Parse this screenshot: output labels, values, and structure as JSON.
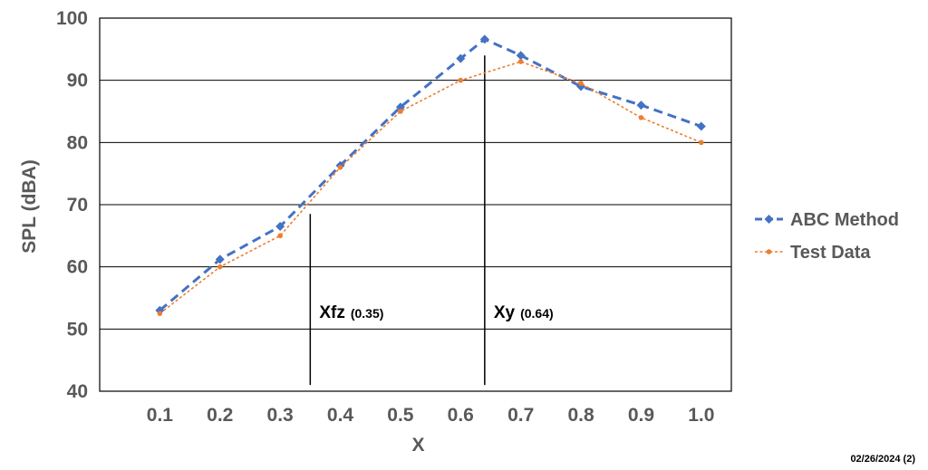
{
  "chart_data": {
    "type": "line",
    "xlabel": "X",
    "ylabel": "SPL (dBA)",
    "x": [
      0.1,
      0.2,
      0.3,
      0.4,
      0.5,
      0.6,
      0.7,
      0.8,
      0.9,
      1.0
    ],
    "x_tick_labels": [
      "0.1",
      "0.2",
      "0.3",
      "0.4",
      "0.5",
      "0.6",
      "0.7",
      "0.8",
      "0.9",
      "1.0"
    ],
    "xlim": [
      0.0,
      1.05
    ],
    "ylim": [
      40,
      100
    ],
    "y_ticks": [
      40,
      50,
      60,
      70,
      80,
      90,
      100
    ],
    "grid": "horizontal",
    "legend_position": "right",
    "series": [
      {
        "name": "ABC Method",
        "color": "#4472C4",
        "line_style": "dashed",
        "marker": "diamond",
        "values": [
          53.0,
          61.2,
          66.5,
          76.3,
          85.7,
          93.5,
          96.6,
          94.0,
          89.0,
          86.0,
          82.6
        ],
        "x": [
          0.1,
          0.2,
          0.3,
          0.4,
          0.5,
          0.6,
          0.64,
          0.7,
          0.8,
          0.9,
          1.0
        ]
      },
      {
        "name": "Test Data",
        "color": "#ED7D31",
        "line_style": "dotted",
        "marker": "circle",
        "values": [
          52.5,
          60.0,
          65.0,
          76.0,
          85.0,
          90.0,
          93.0,
          89.5,
          84.0,
          80.0
        ],
        "x": [
          0.1,
          0.2,
          0.3,
          0.4,
          0.5,
          0.6,
          0.7,
          0.8,
          0.9,
          1.0
        ]
      }
    ],
    "annotations": [
      {
        "label": "Xfz",
        "sub": "(0.35)",
        "x": 0.35,
        "y_from": 41,
        "y_to": 68.5
      },
      {
        "label": "Xy",
        "sub": "(0.64)",
        "x": 0.64,
        "y_from": 41,
        "y_to": 94
      }
    ]
  },
  "footer": {
    "stamp": "02/26/2024 (2)"
  }
}
